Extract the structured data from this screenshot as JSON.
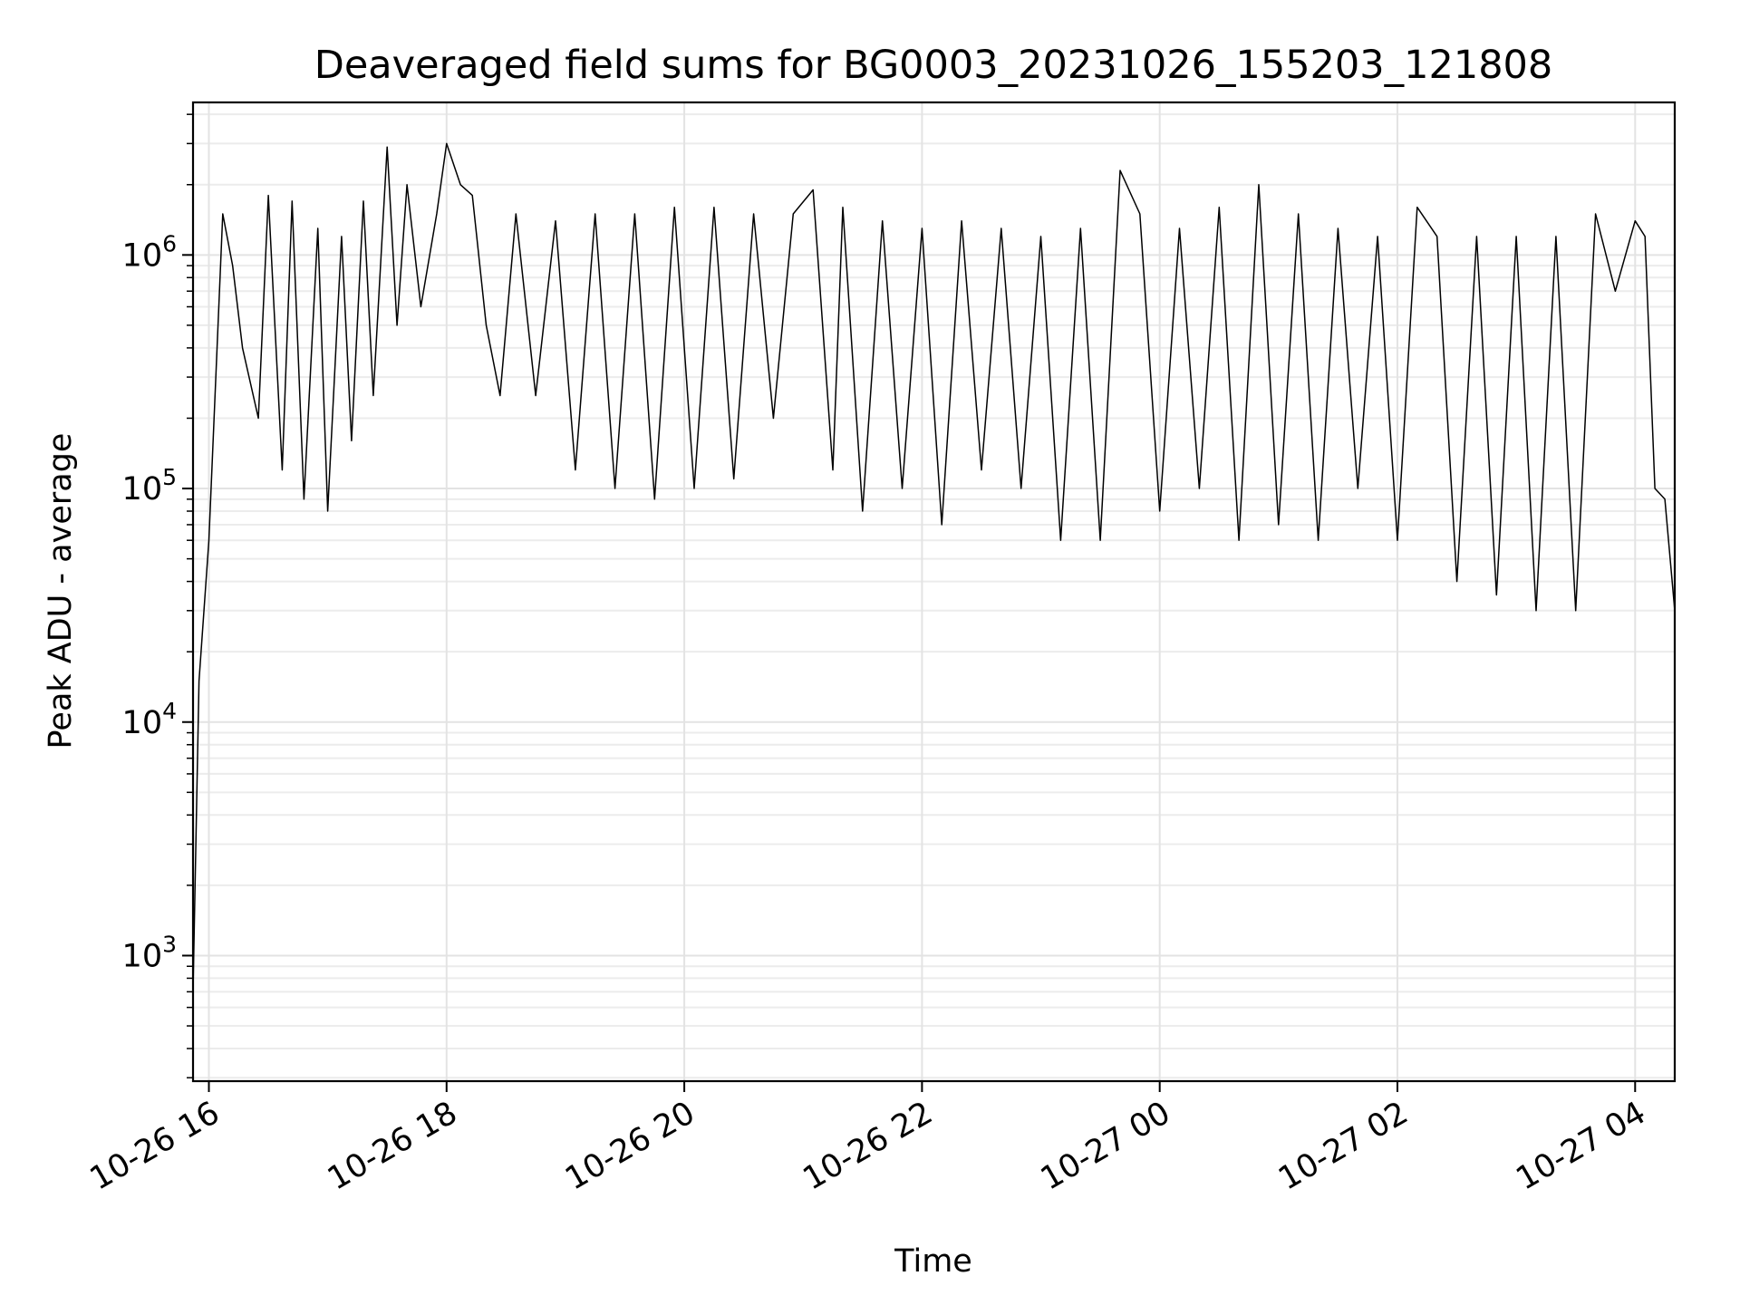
{
  "chart_data": {
    "type": "line",
    "title": "Deaveraged field sums for BG0003_20231026_155203_121808",
    "xlabel": "Time",
    "ylabel": "Peak ADU - average",
    "yscale": "log",
    "ylim": [
      290,
      4500000
    ],
    "xlim": [
      "2023-10-26 15:52",
      "2023-10-27 04:20"
    ],
    "grid": true,
    "x_ticks": [
      {
        "value": "2023-10-26 16:00",
        "label": "10-26 16"
      },
      {
        "value": "2023-10-26 18:00",
        "label": "10-26 18"
      },
      {
        "value": "2023-10-26 20:00",
        "label": "10-26 20"
      },
      {
        "value": "2023-10-26 22:00",
        "label": "10-26 22"
      },
      {
        "value": "2023-10-27 00:00",
        "label": "10-27 00"
      },
      {
        "value": "2023-10-27 02:00",
        "label": "10-27 02"
      },
      {
        "value": "2023-10-27 04:00",
        "label": "10-27 04"
      }
    ],
    "y_ticks": [
      {
        "value": 1000,
        "base": "10",
        "exp": "3"
      },
      {
        "value": 10000,
        "base": "10",
        "exp": "4"
      },
      {
        "value": 100000,
        "base": "10",
        "exp": "5"
      },
      {
        "value": 1000000,
        "base": "10",
        "exp": "6"
      }
    ],
    "series": [
      {
        "color": "#000000",
        "x": [
          "2023-10-26 15:52",
          "2023-10-26 15:55",
          "2023-10-26 16:00",
          "2023-10-26 16:07",
          "2023-10-26 16:12",
          "2023-10-26 16:17",
          "2023-10-26 16:25",
          "2023-10-26 16:30",
          "2023-10-26 16:37",
          "2023-10-26 16:42",
          "2023-10-26 16:48",
          "2023-10-26 16:55",
          "2023-10-26 17:00",
          "2023-10-26 17:07",
          "2023-10-26 17:12",
          "2023-10-26 17:18",
          "2023-10-26 17:23",
          "2023-10-26 17:30",
          "2023-10-26 17:35",
          "2023-10-26 17:40",
          "2023-10-26 17:47",
          "2023-10-26 17:55",
          "2023-10-26 18:00",
          "2023-10-26 18:07",
          "2023-10-26 18:13",
          "2023-10-26 18:20",
          "2023-10-26 18:27",
          "2023-10-26 18:35",
          "2023-10-26 18:45",
          "2023-10-26 18:55",
          "2023-10-26 19:05",
          "2023-10-26 19:15",
          "2023-10-26 19:25",
          "2023-10-26 19:35",
          "2023-10-26 19:45",
          "2023-10-26 19:55",
          "2023-10-26 20:05",
          "2023-10-26 20:15",
          "2023-10-26 20:25",
          "2023-10-26 20:35",
          "2023-10-26 20:45",
          "2023-10-26 20:55",
          "2023-10-26 21:05",
          "2023-10-26 21:15",
          "2023-10-26 21:20",
          "2023-10-26 21:30",
          "2023-10-26 21:40",
          "2023-10-26 21:50",
          "2023-10-26 22:00",
          "2023-10-26 22:10",
          "2023-10-26 22:20",
          "2023-10-26 22:30",
          "2023-10-26 22:40",
          "2023-10-26 22:50",
          "2023-10-26 23:00",
          "2023-10-26 23:10",
          "2023-10-26 23:20",
          "2023-10-26 23:30",
          "2023-10-26 23:40",
          "2023-10-26 23:50",
          "2023-10-27 00:00",
          "2023-10-27 00:10",
          "2023-10-27 00:20",
          "2023-10-27 00:30",
          "2023-10-27 00:40",
          "2023-10-27 00:50",
          "2023-10-27 01:00",
          "2023-10-27 01:10",
          "2023-10-27 01:20",
          "2023-10-27 01:30",
          "2023-10-27 01:40",
          "2023-10-27 01:50",
          "2023-10-27 02:00",
          "2023-10-27 02:10",
          "2023-10-27 02:20",
          "2023-10-27 02:30",
          "2023-10-27 02:40",
          "2023-10-27 02:50",
          "2023-10-27 03:00",
          "2023-10-27 03:10",
          "2023-10-27 03:20",
          "2023-10-27 03:30",
          "2023-10-27 03:40",
          "2023-10-27 03:50",
          "2023-10-27 04:00",
          "2023-10-27 04:05",
          "2023-10-27 04:10",
          "2023-10-27 04:15",
          "2023-10-27 04:20"
        ],
        "y": [
          700,
          15000,
          60000,
          1500000,
          900000,
          400000,
          200000,
          1800000,
          120000,
          1700000,
          90000,
          1300000,
          80000,
          1200000,
          160000,
          1700000,
          250000,
          2900000,
          500000,
          2000000,
          600000,
          1500000,
          3000000,
          2000000,
          1800000,
          500000,
          250000,
          1500000,
          250000,
          1400000,
          120000,
          1500000,
          100000,
          1500000,
          90000,
          1600000,
          100000,
          1600000,
          110000,
          1500000,
          200000,
          1500000,
          1900000,
          120000,
          1600000,
          80000,
          1400000,
          100000,
          1300000,
          70000,
          1400000,
          120000,
          1300000,
          100000,
          1200000,
          60000,
          1300000,
          60000,
          2300000,
          1500000,
          80000,
          1300000,
          100000,
          1600000,
          60000,
          2000000,
          70000,
          1500000,
          60000,
          1300000,
          100000,
          1200000,
          60000,
          1600000,
          1200000,
          40000,
          1200000,
          35000,
          1200000,
          30000,
          1200000,
          30000,
          1500000,
          700000,
          1400000,
          1200000,
          100000,
          90000,
          30000
        ]
      }
    ]
  }
}
